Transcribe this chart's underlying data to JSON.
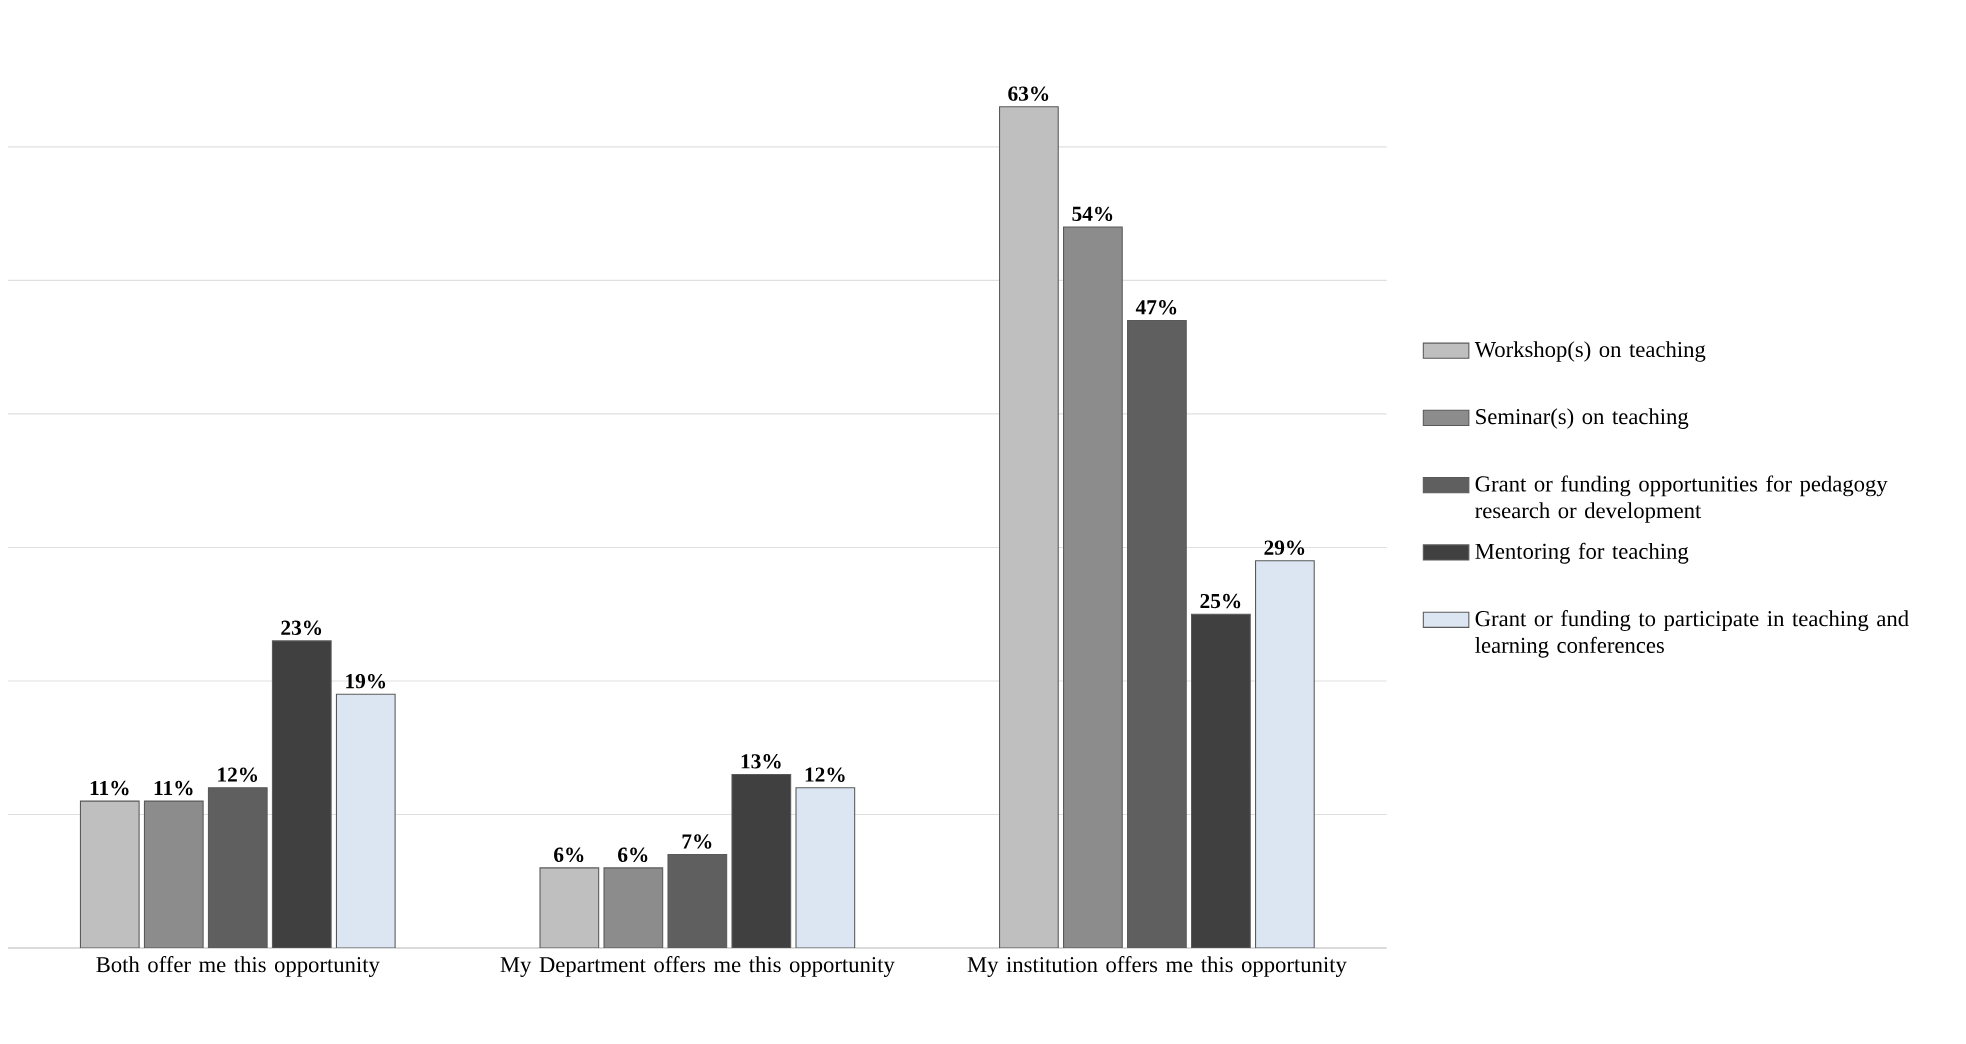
{
  "chart_data": {
    "type": "bar",
    "categories": [
      "Both offer me this opportunity",
      "My Department offers me this opportunity",
      "My institution offers me this opportunity"
    ],
    "series": [
      {
        "name": "Workshop(s) on teaching",
        "color": "#bfbfbf",
        "values": [
          11,
          6,
          63
        ],
        "value_labels": [
          "11%",
          "6%",
          "63%"
        ]
      },
      {
        "name": "Seminar(s) on teaching",
        "color": "#8c8c8c",
        "values": [
          11,
          6,
          54
        ],
        "value_labels": [
          "11%",
          "6%",
          "54%"
        ]
      },
      {
        "name": "Grant or funding opportunities for pedagogy research or development",
        "color": "#5f5f5f",
        "values": [
          12,
          7,
          47
        ],
        "value_labels": [
          "12%",
          "7%",
          "47%"
        ]
      },
      {
        "name": "Mentoring for teaching",
        "color": "#404040",
        "values": [
          23,
          13,
          25
        ],
        "value_labels": [
          "23%",
          "13%",
          "25%"
        ]
      },
      {
        "name": "Grant or funding to participate in teaching and learning conferences",
        "color": "#dbe6f2",
        "values": [
          19,
          12,
          29
        ],
        "value_labels": [
          "19%",
          "12%",
          "29%"
        ]
      }
    ],
    "tick_labels": "x",
    "grid": "y",
    "legend": "right"
  }
}
